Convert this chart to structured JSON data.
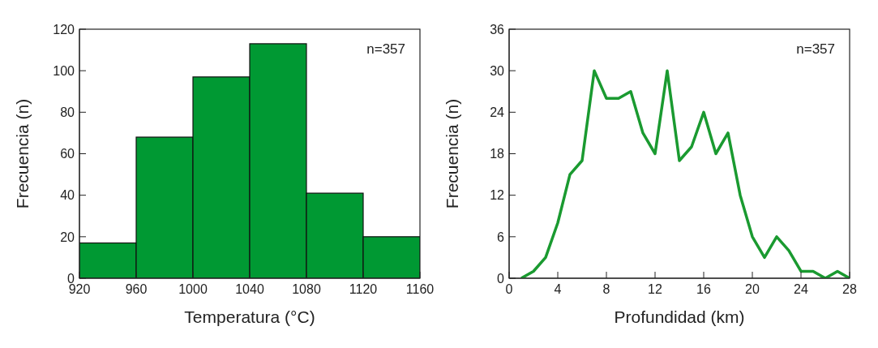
{
  "chart_data": [
    {
      "type": "histogram",
      "xlabel": "Temperatura (°C)",
      "ylabel": "Frecuencia (n)",
      "bins": [
        920,
        960,
        1000,
        1040,
        1080,
        1120,
        1160
      ],
      "values": [
        17,
        68,
        97,
        113,
        41,
        20
      ],
      "color": "#009933",
      "xlim": [
        920,
        1160
      ],
      "xticks": [
        920,
        960,
        1000,
        1040,
        1080,
        1120,
        1160
      ],
      "ylim": [
        0,
        120
      ],
      "yticks": [
        0,
        20,
        40,
        60,
        80,
        100,
        120
      ],
      "grid": false,
      "annotations": [
        "n=357"
      ]
    },
    {
      "type": "line",
      "xlabel": "Profundidad (km)",
      "ylabel": "Frecuencia (n)",
      "x": [
        1,
        2,
        3,
        4,
        5,
        6,
        7,
        8,
        9,
        10,
        11,
        12,
        13,
        14,
        15,
        16,
        17,
        18,
        19,
        20,
        21,
        22,
        23,
        24,
        25,
        26,
        27,
        28
      ],
      "values": [
        0,
        1,
        3,
        8,
        15,
        17,
        30,
        26,
        26,
        27,
        21,
        18,
        30,
        17,
        19,
        24,
        18,
        21,
        12,
        6,
        3,
        6,
        4,
        1,
        1,
        0,
        1,
        0
      ],
      "color": "#1a9a30",
      "xlim": [
        0,
        28
      ],
      "xticks": [
        0,
        4,
        8,
        12,
        16,
        20,
        24,
        28
      ],
      "ylim": [
        0,
        36
      ],
      "yticks": [
        0,
        6,
        12,
        18,
        24,
        30,
        36
      ],
      "grid": false,
      "annotations": [
        "n=357"
      ]
    }
  ]
}
